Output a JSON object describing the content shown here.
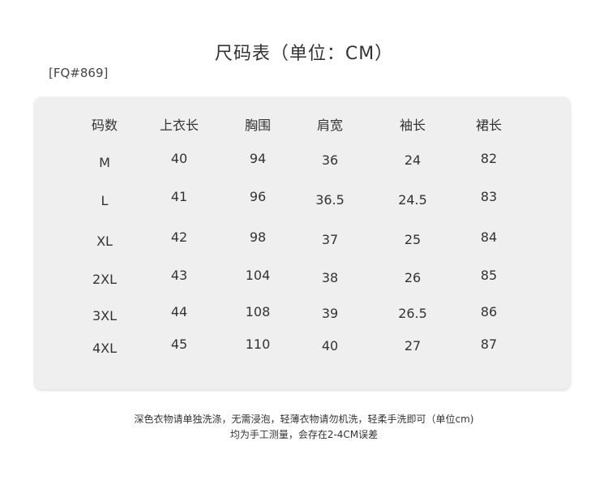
{
  "title": "尺码表（单位：CM）",
  "product_code": "[FQ#869]",
  "table": {
    "headers": [
      "码数",
      "上衣长",
      "胸围",
      "肩宽",
      "袖长",
      "裙长"
    ],
    "rows": [
      [
        "M",
        "40",
        "94",
        "36",
        "24",
        "82"
      ],
      [
        "L",
        "41",
        "96",
        "36.5",
        "24.5",
        "83"
      ],
      [
        "XL",
        "42",
        "98",
        "37",
        "25",
        "84"
      ],
      [
        "2XL",
        "43",
        "104",
        "38",
        "26",
        "85"
      ],
      [
        "3XL",
        "44",
        "108",
        "39",
        "26.5",
        "86"
      ],
      [
        "4XL",
        "45",
        "110",
        "40",
        "27",
        "87"
      ]
    ]
  },
  "notes": [
    "深色衣物请单独洗涤，无需浸泡，轻薄衣物请勿机洗，轻柔手洗即可（单位cm)",
    "均为手工测量，会存在2-4CM误差"
  ]
}
